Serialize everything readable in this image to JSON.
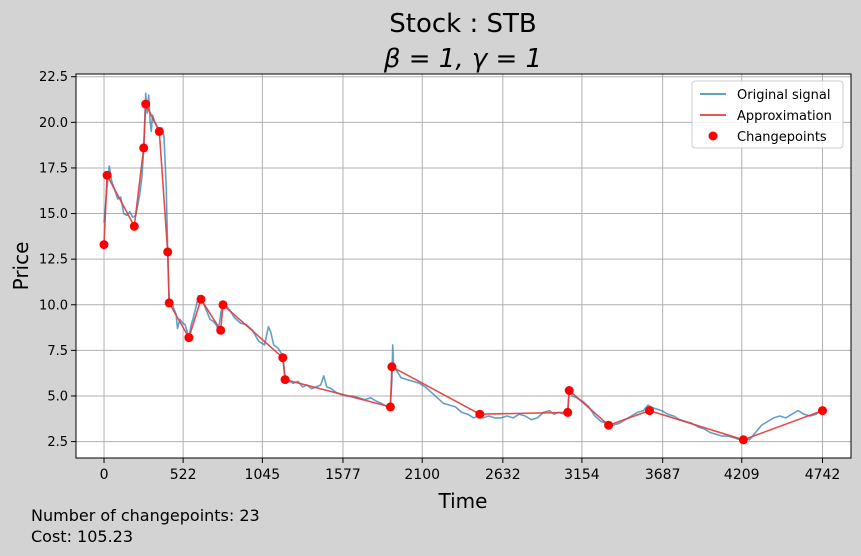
{
  "chart_data": {
    "type": "line",
    "title": "Stock : STB",
    "subtitle": "β = 1, γ = 1",
    "xlabel": "Time",
    "ylabel": "Price",
    "xlim": [
      -185,
      4930
    ],
    "ylim": [
      1.6,
      22.65
    ],
    "xticks": [
      0,
      522,
      1045,
      1577,
      2100,
      2632,
      3154,
      3687,
      4209,
      4742
    ],
    "yticks": [
      2.5,
      5.0,
      7.5,
      10.0,
      12.5,
      15.0,
      17.5,
      20.0,
      22.5
    ],
    "ytick_labels": [
      "2.5",
      "5.0",
      "7.5",
      "10.0",
      "12.5",
      "15.0",
      "17.5",
      "20.0",
      "22.5"
    ],
    "grid": true,
    "legend_position": "upper right",
    "legend": [
      "Original signal",
      "Approximation",
      "Changepoints"
    ],
    "series": [
      {
        "name": "Original signal",
        "color": "#1f77b4",
        "points": [
          [
            0,
            14.5
          ],
          [
            20,
            16.5
          ],
          [
            35,
            17.6
          ],
          [
            50,
            16.8
          ],
          [
            70,
            16.3
          ],
          [
            90,
            15.8
          ],
          [
            110,
            15.9
          ],
          [
            130,
            15.0
          ],
          [
            150,
            14.9
          ],
          [
            170,
            15.1
          ],
          [
            190,
            14.8
          ],
          [
            210,
            14.9
          ],
          [
            235,
            16.0
          ],
          [
            250,
            17.0
          ],
          [
            262,
            18.5
          ],
          [
            275,
            21.6
          ],
          [
            285,
            20.5
          ],
          [
            295,
            21.5
          ],
          [
            305,
            20.0
          ],
          [
            312,
            19.5
          ],
          [
            320,
            20.4
          ],
          [
            335,
            20.0
          ],
          [
            350,
            19.8
          ],
          [
            365,
            19.5
          ],
          [
            380,
            19.7
          ],
          [
            395,
            19.3
          ],
          [
            410,
            16.5
          ],
          [
            420,
            13.0
          ],
          [
            430,
            10.0
          ],
          [
            445,
            10.2
          ],
          [
            460,
            9.8
          ],
          [
            475,
            9.5
          ],
          [
            485,
            8.7
          ],
          [
            500,
            9.2
          ],
          [
            520,
            9.0
          ],
          [
            535,
            8.9
          ],
          [
            550,
            8.5
          ],
          [
            560,
            8.2
          ],
          [
            575,
            8.9
          ],
          [
            590,
            9.3
          ],
          [
            610,
            10.0
          ],
          [
            625,
            10.5
          ],
          [
            640,
            10.4
          ],
          [
            660,
            10.0
          ],
          [
            680,
            9.6
          ],
          [
            700,
            9.2
          ],
          [
            720,
            9.1
          ],
          [
            740,
            8.9
          ],
          [
            755,
            8.6
          ],
          [
            770,
            9.5
          ],
          [
            785,
            10.2
          ],
          [
            800,
            10.0
          ],
          [
            830,
            9.7
          ],
          [
            860,
            9.3
          ],
          [
            900,
            9.0
          ],
          [
            940,
            8.9
          ],
          [
            980,
            8.6
          ],
          [
            1020,
            8.0
          ],
          [
            1060,
            7.8
          ],
          [
            1085,
            8.8
          ],
          [
            1100,
            8.5
          ],
          [
            1120,
            7.8
          ],
          [
            1150,
            7.6
          ],
          [
            1180,
            7.2
          ],
          [
            1195,
            6.0
          ],
          [
            1220,
            5.8
          ],
          [
            1250,
            5.7
          ],
          [
            1280,
            5.8
          ],
          [
            1310,
            5.5
          ],
          [
            1340,
            5.6
          ],
          [
            1370,
            5.4
          ],
          [
            1400,
            5.5
          ],
          [
            1430,
            5.6
          ],
          [
            1450,
            6.1
          ],
          [
            1470,
            5.5
          ],
          [
            1500,
            5.4
          ],
          [
            1530,
            5.2
          ],
          [
            1560,
            5.1
          ],
          [
            1600,
            5.0
          ],
          [
            1640,
            5.0
          ],
          [
            1680,
            4.9
          ],
          [
            1720,
            4.8
          ],
          [
            1760,
            4.9
          ],
          [
            1800,
            4.7
          ],
          [
            1830,
            4.6
          ],
          [
            1850,
            4.5
          ],
          [
            1870,
            4.4
          ],
          [
            1890,
            4.6
          ],
          [
            1900,
            5.8
          ],
          [
            1905,
            7.8
          ],
          [
            1912,
            6.5
          ],
          [
            1930,
            6.4
          ],
          [
            1960,
            6.0
          ],
          [
            2000,
            5.9
          ],
          [
            2040,
            5.8
          ],
          [
            2080,
            5.7
          ],
          [
            2120,
            5.5
          ],
          [
            2160,
            5.2
          ],
          [
            2200,
            4.9
          ],
          [
            2240,
            4.6
          ],
          [
            2280,
            4.5
          ],
          [
            2320,
            4.4
          ],
          [
            2360,
            4.1
          ],
          [
            2400,
            4.0
          ],
          [
            2440,
            3.8
          ],
          [
            2470,
            3.9
          ],
          [
            2500,
            3.8
          ],
          [
            2540,
            3.9
          ],
          [
            2580,
            3.8
          ],
          [
            2620,
            3.8
          ],
          [
            2660,
            3.9
          ],
          [
            2700,
            3.8
          ],
          [
            2740,
            4.0
          ],
          [
            2780,
            3.9
          ],
          [
            2820,
            3.7
          ],
          [
            2860,
            3.8
          ],
          [
            2900,
            4.1
          ],
          [
            2940,
            4.2
          ],
          [
            2970,
            4.0
          ],
          [
            3000,
            4.1
          ],
          [
            3040,
            4.0
          ],
          [
            3060,
            4.1
          ],
          [
            3070,
            5.4
          ],
          [
            3090,
            5.0
          ],
          [
            3120,
            4.9
          ],
          [
            3160,
            4.7
          ],
          [
            3200,
            4.4
          ],
          [
            3240,
            3.9
          ],
          [
            3280,
            3.6
          ],
          [
            3320,
            3.5
          ],
          [
            3360,
            3.4
          ],
          [
            3400,
            3.5
          ],
          [
            3440,
            3.7
          ],
          [
            3480,
            3.9
          ],
          [
            3520,
            4.1
          ],
          [
            3560,
            4.2
          ],
          [
            3590,
            4.5
          ],
          [
            3610,
            4.4
          ],
          [
            3640,
            4.3
          ],
          [
            3680,
            4.2
          ],
          [
            3720,
            4.0
          ],
          [
            3760,
            3.9
          ],
          [
            3800,
            3.7
          ],
          [
            3840,
            3.6
          ],
          [
            3880,
            3.5
          ],
          [
            3920,
            3.3
          ],
          [
            3960,
            3.2
          ],
          [
            4000,
            3.0
          ],
          [
            4040,
            2.9
          ],
          [
            4080,
            2.8
          ],
          [
            4120,
            2.8
          ],
          [
            4160,
            2.7
          ],
          [
            4200,
            2.6
          ],
          [
            4230,
            2.7
          ],
          [
            4260,
            2.6
          ],
          [
            4300,
            3.0
          ],
          [
            4340,
            3.4
          ],
          [
            4380,
            3.6
          ],
          [
            4420,
            3.8
          ],
          [
            4460,
            3.9
          ],
          [
            4500,
            3.8
          ],
          [
            4540,
            4.0
          ],
          [
            4580,
            4.2
          ],
          [
            4620,
            4.0
          ],
          [
            4660,
            3.9
          ],
          [
            4700,
            4.0
          ],
          [
            4742,
            4.3
          ]
        ]
      },
      {
        "name": "Approximation",
        "color": "#e23a3a",
        "points": [
          [
            0,
            13.3
          ],
          [
            20,
            17.1
          ],
          [
            200,
            14.3
          ],
          [
            262,
            18.6
          ],
          [
            275,
            21.0
          ],
          [
            365,
            19.5
          ],
          [
            420,
            12.9
          ],
          [
            430,
            10.1
          ],
          [
            560,
            8.2
          ],
          [
            640,
            10.3
          ],
          [
            770,
            8.6
          ],
          [
            785,
            10.0
          ],
          [
            1180,
            7.1
          ],
          [
            1195,
            5.9
          ],
          [
            1890,
            4.4
          ],
          [
            1900,
            6.6
          ],
          [
            2480,
            4.0
          ],
          [
            3060,
            4.1
          ],
          [
            3070,
            5.3
          ],
          [
            3330,
            3.4
          ],
          [
            3600,
            4.2
          ],
          [
            4220,
            2.6
          ],
          [
            4742,
            4.2
          ]
        ]
      },
      {
        "name": "Changepoints",
        "color": "#ff0000",
        "points": [
          [
            0,
            13.3
          ],
          [
            20,
            17.1
          ],
          [
            200,
            14.3
          ],
          [
            262,
            18.6
          ],
          [
            275,
            21.0
          ],
          [
            365,
            19.5
          ],
          [
            420,
            12.9
          ],
          [
            430,
            10.1
          ],
          [
            560,
            8.2
          ],
          [
            640,
            10.3
          ],
          [
            770,
            8.6
          ],
          [
            785,
            10.0
          ],
          [
            1180,
            7.1
          ],
          [
            1195,
            5.9
          ],
          [
            1890,
            4.4
          ],
          [
            1900,
            6.6
          ],
          [
            2480,
            4.0
          ],
          [
            3060,
            4.1
          ],
          [
            3070,
            5.3
          ],
          [
            3330,
            3.4
          ],
          [
            3600,
            4.2
          ],
          [
            4220,
            2.6
          ],
          [
            4742,
            4.2
          ]
        ]
      }
    ]
  },
  "footer": {
    "changepoints_line": "Number of changepoints: 23",
    "cost_line": "Cost: 105.23"
  }
}
